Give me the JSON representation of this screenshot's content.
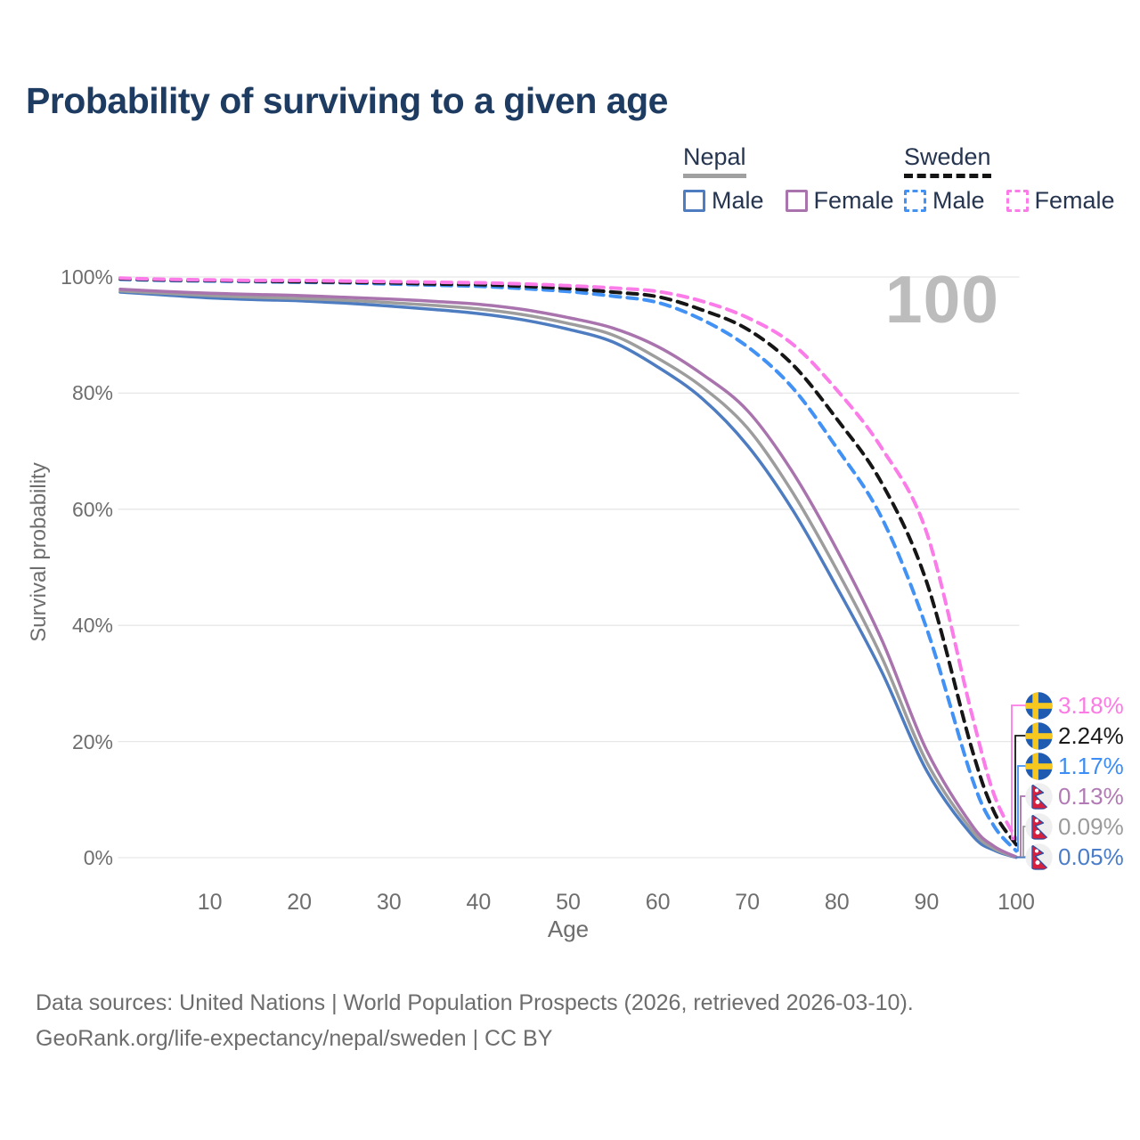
{
  "title": "Probability of surviving to a given age",
  "watermark": "100",
  "legend": {
    "groups": [
      {
        "country": "Nepal",
        "line_style": "solid",
        "line_color": "#a0a0a0",
        "items": [
          {
            "label": "Male",
            "color": "#4d7cc1",
            "dashed": false
          },
          {
            "label": "Female",
            "color": "#a973ae",
            "dashed": false
          }
        ]
      },
      {
        "country": "Sweden",
        "line_style": "dashed",
        "line_color": "#141414",
        "items": [
          {
            "label": "Male",
            "color": "#4292f5",
            "dashed": true
          },
          {
            "label": "Female",
            "color": "#fb7be8",
            "dashed": true
          }
        ]
      }
    ]
  },
  "chart_data": {
    "type": "line",
    "title": "Probability of surviving to a given age",
    "xlabel": "Age",
    "ylabel": "Survival probability",
    "xlim": [
      0,
      100
    ],
    "ylim": [
      0,
      100
    ],
    "grid": "horizontal",
    "legend_position": "top-right",
    "x_ticks": [
      10,
      20,
      30,
      40,
      50,
      60,
      70,
      80,
      90,
      100
    ],
    "y_tick_values": [
      0,
      20,
      40,
      60,
      80,
      100
    ],
    "y_tick_labels": [
      "0%",
      "20%",
      "40%",
      "60%",
      "80%",
      "100%"
    ],
    "ages": [
      0,
      5,
      10,
      15,
      20,
      25,
      30,
      35,
      40,
      45,
      50,
      55,
      60,
      65,
      70,
      75,
      80,
      85,
      90,
      95,
      97.5,
      100
    ],
    "series": [
      {
        "name": "Nepal Male",
        "country": "Nepal",
        "sex": "Male",
        "color": "#4d7cc1",
        "dashed": false,
        "end_label": "0.05%",
        "values": [
          97.4,
          96.9,
          96.4,
          96.1,
          95.9,
          95.5,
          95.0,
          94.4,
          93.7,
          92.6,
          91.0,
          88.8,
          84.5,
          79.0,
          71.0,
          60.0,
          46.5,
          32.0,
          15.0,
          4.0,
          1.3,
          0.05
        ]
      },
      {
        "name": "Nepal",
        "country": "Nepal",
        "sex": "Both",
        "color": "#9d9d9d",
        "dashed": false,
        "end_label": "0.09%",
        "values": [
          97.6,
          97.2,
          96.8,
          96.5,
          96.3,
          96.0,
          95.6,
          95.1,
          94.5,
          93.5,
          92.0,
          90.0,
          86.0,
          81.0,
          74.0,
          63.0,
          49.5,
          34.5,
          16.5,
          4.8,
          1.6,
          0.09
        ]
      },
      {
        "name": "Nepal Female",
        "country": "Nepal",
        "sex": "Female",
        "color": "#a973ae",
        "dashed": false,
        "end_label": "0.13%",
        "values": [
          97.9,
          97.5,
          97.2,
          97.0,
          96.8,
          96.5,
          96.2,
          95.8,
          95.3,
          94.4,
          93.0,
          91.2,
          88.0,
          83.2,
          77.0,
          66.5,
          53.0,
          37.5,
          18.5,
          5.7,
          2.0,
          0.13
        ]
      },
      {
        "name": "Sweden Male",
        "country": "Sweden",
        "sex": "Male",
        "color": "#4292f5",
        "dashed": true,
        "end_label": "1.17%",
        "values": [
          99.6,
          99.4,
          99.3,
          99.2,
          99.1,
          99.0,
          98.8,
          98.6,
          98.4,
          98.0,
          97.5,
          96.7,
          95.6,
          92.6,
          88.0,
          81.0,
          70.5,
          58.5,
          39.5,
          14.0,
          5.5,
          1.17
        ]
      },
      {
        "name": "Sweden",
        "country": "Sweden",
        "sex": "Both",
        "color": "#161616",
        "dashed": true,
        "end_label": "2.24%",
        "values": [
          99.7,
          99.5,
          99.4,
          99.3,
          99.2,
          99.1,
          99.0,
          98.8,
          98.7,
          98.4,
          98.0,
          97.4,
          96.6,
          94.3,
          91.0,
          85.0,
          75.5,
          64.5,
          47.5,
          19.0,
          8.0,
          2.24
        ]
      },
      {
        "name": "Sweden Female",
        "country": "Sweden",
        "sex": "Female",
        "color": "#fb7be8",
        "dashed": true,
        "end_label": "3.18%",
        "values": [
          99.8,
          99.6,
          99.5,
          99.4,
          99.4,
          99.3,
          99.2,
          99.1,
          99.0,
          98.8,
          98.5,
          98.1,
          97.5,
          95.8,
          93.0,
          88.5,
          80.5,
          70.5,
          56.0,
          25.0,
          11.0,
          3.18
        ]
      }
    ]
  },
  "end_labels": [
    {
      "flag": "sweden",
      "text": "3.18%",
      "color": "#fc7ae4",
      "series": "Sweden Female"
    },
    {
      "flag": "sweden",
      "text": "2.24%",
      "color": "#1a1a1a",
      "series": "Sweden"
    },
    {
      "flag": "sweden",
      "text": "1.17%",
      "color": "#3c8df5",
      "series": "Sweden Male"
    },
    {
      "flag": "nepal",
      "text": "0.13%",
      "color": "#b27ab5",
      "series": "Nepal Female"
    },
    {
      "flag": "nepal",
      "text": "0.09%",
      "color": "#9b9b9b",
      "series": "Nepal"
    },
    {
      "flag": "nepal",
      "text": "0.05%",
      "color": "#4a7dc9",
      "series": "Nepal Male"
    }
  ],
  "footer": {
    "line1": "Data sources: United Nations | World Population Prospects (2026, retrieved 2026-03-10).",
    "line2": "GeoRank.org/life-expectancy/nepal/sweden | CC BY"
  }
}
